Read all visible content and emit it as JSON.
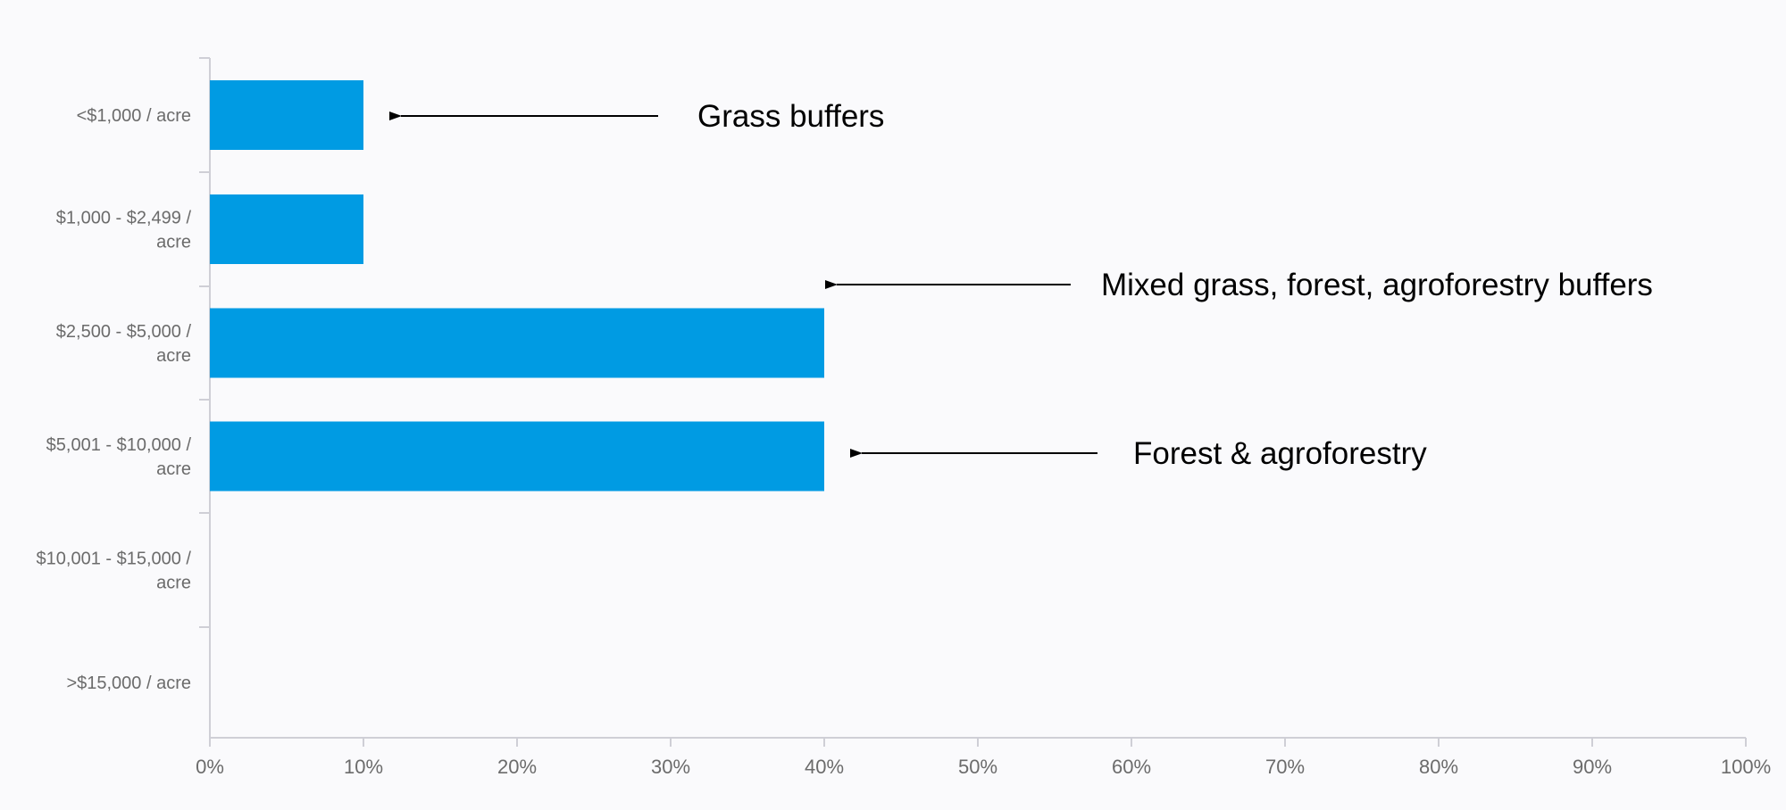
{
  "chart_data": {
    "type": "bar",
    "orientation": "horizontal",
    "categories": [
      [
        "<$1,000 / acre"
      ],
      [
        "$1,000 - $2,499 /",
        "acre"
      ],
      [
        "$2,500 - $5,000 /",
        "acre"
      ],
      [
        "$5,001 - $10,000 /",
        "acre"
      ],
      [
        "$10,001 - $15,000 /",
        "acre"
      ],
      [
        ">$15,000 / acre"
      ]
    ],
    "values": [
      10,
      10,
      40,
      40,
      0,
      0
    ],
    "xlim": [
      0,
      100
    ],
    "x_ticks": [
      "0%",
      "10%",
      "20%",
      "30%",
      "40%",
      "50%",
      "60%",
      "70%",
      "80%",
      "90%",
      "100%"
    ],
    "grid": false,
    "legend": "none",
    "annotations": [
      {
        "text": "Grass buffers",
        "points_to_category": 0,
        "points_to_value": 10
      },
      {
        "text": "Mixed grass, forest, agroforestry buffers",
        "points_to_category": 2,
        "points_to_value": 40
      },
      {
        "text": "Forest & agroforestry",
        "points_to_category": 3,
        "points_to_value": 40
      }
    ],
    "colors": {
      "bar": "#009be3",
      "axis": "#cfcfd6",
      "label": "#6b6b6b",
      "annotation": "#000000"
    }
  }
}
